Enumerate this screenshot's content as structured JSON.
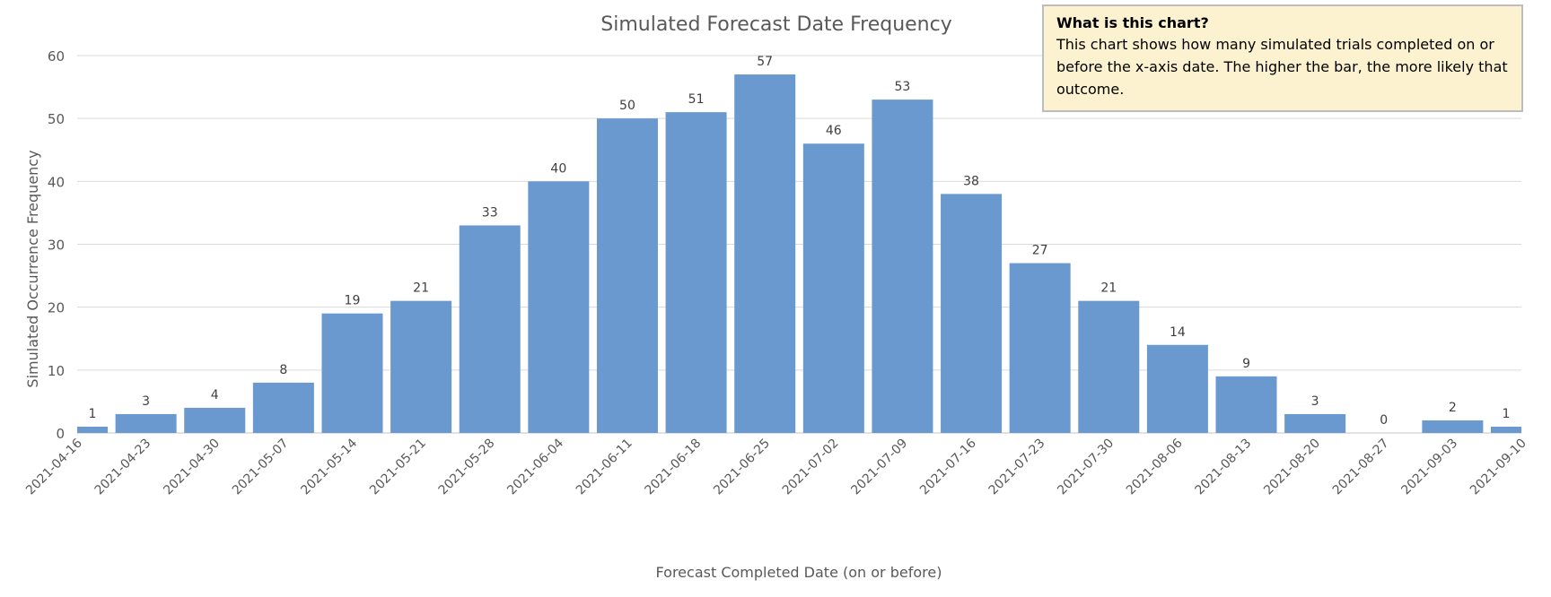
{
  "chart_data": {
    "type": "bar",
    "title": "Simulated Forecast Date Frequency",
    "xlabel": "Forecast Completed Date (on or before)",
    "ylabel": "Simulated Occurrence Frequency",
    "ylim": [
      0,
      60
    ],
    "yticks": [
      0,
      10,
      20,
      30,
      40,
      50,
      60
    ],
    "grid": true,
    "data_labels": true,
    "bar_color": "#6A99CF",
    "categories": [
      "2021-04-16",
      "2021-04-23",
      "2021-04-30",
      "2021-05-07",
      "2021-05-14",
      "2021-05-21",
      "2021-05-28",
      "2021-06-04",
      "2021-06-11",
      "2021-06-18",
      "2021-06-25",
      "2021-07-02",
      "2021-07-09",
      "2021-07-16",
      "2021-07-23",
      "2021-07-30",
      "2021-08-06",
      "2021-08-13",
      "2021-08-20",
      "2021-08-27",
      "2021-09-03",
      "2021-09-10"
    ],
    "values": [
      1,
      3,
      4,
      8,
      19,
      21,
      33,
      40,
      50,
      51,
      57,
      46,
      53,
      38,
      27,
      21,
      14,
      9,
      3,
      0,
      2,
      1
    ]
  },
  "note": {
    "title": "What is this chart?",
    "body": "This chart shows how many simulated trials completed on or  before the x-axis date. The higher the bar, the more likely that outcome."
  }
}
